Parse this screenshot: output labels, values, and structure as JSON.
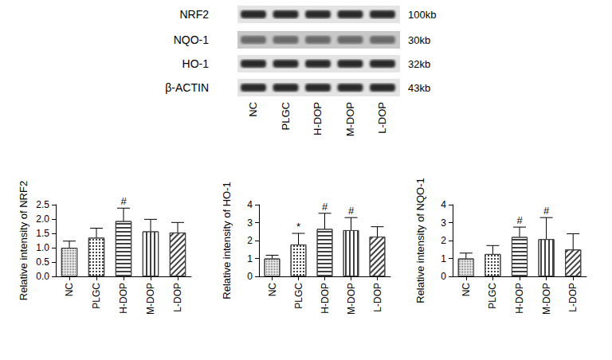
{
  "blot": {
    "rows": [
      {
        "label": "NRF2",
        "size": "100kb"
      },
      {
        "label": "NQO-1",
        "size": "30kb"
      },
      {
        "label": "HO-1",
        "size": "32kb"
      },
      {
        "label": "β-ACTIN",
        "size": "43kb"
      }
    ],
    "lanes": [
      "NC",
      "PLGC",
      "H-DOP",
      "M-DOP",
      "L-DOP"
    ]
  },
  "chart_data": [
    {
      "type": "bar",
      "ylabel": "Relative intensity of NRF2",
      "categories": [
        "NC",
        "PLGC",
        "H-DOP",
        "M-DOP",
        "L-DOP"
      ],
      "values": [
        1.0,
        1.35,
        1.93,
        1.57,
        1.53
      ],
      "errors": [
        0.23,
        0.33,
        0.45,
        0.42,
        0.35
      ],
      "significance": [
        null,
        null,
        "#",
        null,
        null
      ],
      "color": "#404040",
      "ylim": [
        0,
        2.5
      ],
      "yticks": [
        {
          "value": 0,
          "label": "0.0"
        },
        {
          "value": 0.5,
          "label": "0.5"
        },
        {
          "value": 1,
          "label": "1.0"
        },
        {
          "value": 1.5,
          "label": "1.5"
        },
        {
          "value": 2,
          "label": "2.0"
        },
        {
          "value": 2.5,
          "label": "2.5"
        }
      ]
    },
    {
      "type": "bar",
      "ylabel": "Relative intensity of HO-1",
      "categories": [
        "NC",
        "PLGC",
        "H-DOP",
        "M-DOP",
        "L-DOP"
      ],
      "values": [
        1.0,
        1.78,
        2.65,
        2.58,
        2.22
      ],
      "errors": [
        0.18,
        0.62,
        0.87,
        0.7,
        0.55
      ],
      "significance": [
        null,
        "*",
        "#",
        "#",
        null
      ],
      "color": "#404040",
      "ylim": [
        0,
        4
      ],
      "yticks": [
        0,
        1,
        2,
        3,
        4
      ]
    },
    {
      "type": "bar",
      "ylabel": "Relative intensity of NQO-1",
      "categories": [
        "NC",
        "PLGC",
        "H-DOP",
        "M-DOP",
        "L-DOP"
      ],
      "values": [
        1.0,
        1.25,
        2.2,
        2.08,
        1.5
      ],
      "errors": [
        0.3,
        0.47,
        0.55,
        1.2,
        0.88
      ],
      "significance": [
        null,
        null,
        "#",
        "#",
        null
      ],
      "color": "#404040",
      "ylim": [
        0,
        4
      ],
      "yticks": [
        0,
        1,
        2,
        3,
        4
      ]
    }
  ]
}
